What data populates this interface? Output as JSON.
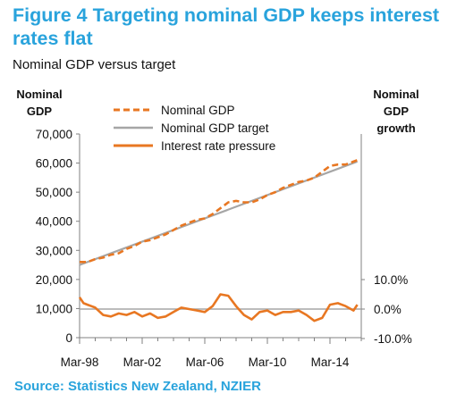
{
  "header": {
    "title": "Figure 4 Targeting nominal GDP keeps interest rates flat",
    "subtitle": "Nominal GDP versus target"
  },
  "footer": {
    "source": "Source: Statistics New Zealand, NZIER"
  },
  "colors": {
    "nominal_gdp": "#e87722",
    "target": "#a6a6a6",
    "pressure": "#e87722",
    "axis": "#808080",
    "title": "#29a3dc"
  },
  "chart_data": {
    "type": "line",
    "title": "Figure 4 Targeting nominal GDP keeps interest rates flat",
    "subtitle": "Nominal GDP versus target",
    "y_left_label": [
      "Nominal",
      "GDP"
    ],
    "y_right_label": [
      "Nominal",
      "GDP",
      "growth"
    ],
    "y_left_lim": [
      0,
      70000
    ],
    "y_left_ticks": [
      "0",
      "10,000",
      "20,000",
      "30,000",
      "40,000",
      "50,000",
      "60,000",
      "70,000"
    ],
    "y_right_ticks": [
      {
        "label": "10.0%",
        "value": 0.1
      },
      {
        "label": "0.0%",
        "value": 0.0
      },
      {
        "label": "-10.0%",
        "value": -0.1
      }
    ],
    "x_lim": [
      1998.0,
      2016.0
    ],
    "x_ticks": [
      {
        "label": "Mar-98",
        "value": 1998.0
      },
      {
        "label": "Mar-02",
        "value": 2002.0
      },
      {
        "label": "Mar-06",
        "value": 2006.0
      },
      {
        "label": "Mar-10",
        "value": 2010.0
      },
      {
        "label": "Mar-14",
        "value": 2014.0
      }
    ],
    "grid": false,
    "legend_position": "top-left",
    "series": [
      {
        "name": "Nominal GDP",
        "axis": "left",
        "style": "dashed",
        "x": [
          1998.0,
          1998.5,
          1999.0,
          1999.5,
          2000.0,
          2000.5,
          2001.0,
          2001.5,
          2002.0,
          2002.5,
          2003.0,
          2003.5,
          2004.0,
          2004.5,
          2005.0,
          2005.5,
          2006.0,
          2006.5,
          2007.0,
          2007.5,
          2008.0,
          2008.5,
          2009.0,
          2009.5,
          2010.0,
          2010.5,
          2011.0,
          2011.5,
          2012.0,
          2012.5,
          2013.0,
          2013.5,
          2014.0,
          2014.5,
          2015.0,
          2015.5,
          2015.75
        ],
        "values": [
          26000,
          26000,
          27000,
          27500,
          28500,
          29000,
          30500,
          31500,
          33000,
          33500,
          34500,
          35500,
          37000,
          38500,
          39500,
          40500,
          41000,
          42500,
          44500,
          46500,
          47000,
          46500,
          46500,
          47500,
          49000,
          50000,
          51500,
          52500,
          53500,
          54000,
          55000,
          57000,
          59000,
          59500,
          59500,
          60500,
          61000
        ]
      },
      {
        "name": "Nominal GDP target",
        "axis": "left",
        "style": "solid",
        "x": [
          1998.0,
          2015.75
        ],
        "values": [
          25000,
          60500
        ]
      },
      {
        "name": "Interest rate pressure",
        "axis": "right",
        "style": "solid",
        "x": [
          1998.0,
          1998.25,
          1998.5,
          1998.75,
          1999.0,
          1999.5,
          2000.0,
          2000.5,
          2001.0,
          2001.5,
          2002.0,
          2002.5,
          2003.0,
          2003.5,
          2004.0,
          2004.5,
          2005.0,
          2005.5,
          2006.0,
          2006.5,
          2007.0,
          2007.5,
          2008.0,
          2008.5,
          2009.0,
          2009.5,
          2010.0,
          2010.5,
          2011.0,
          2011.5,
          2012.0,
          2012.5,
          2013.0,
          2013.5,
          2014.0,
          2014.5,
          2015.0,
          2015.5,
          2015.75
        ],
        "values": [
          0.04,
          0.02,
          0.015,
          0.01,
          0.005,
          -0.02,
          -0.025,
          -0.015,
          -0.02,
          -0.01,
          -0.025,
          -0.015,
          -0.03,
          -0.025,
          -0.01,
          0.005,
          0.0,
          -0.005,
          -0.01,
          0.01,
          0.05,
          0.045,
          0.01,
          -0.02,
          -0.035,
          -0.01,
          -0.005,
          -0.02,
          -0.01,
          -0.01,
          -0.005,
          -0.02,
          -0.04,
          -0.03,
          0.015,
          0.02,
          0.01,
          -0.005,
          0.015
        ]
      }
    ]
  }
}
